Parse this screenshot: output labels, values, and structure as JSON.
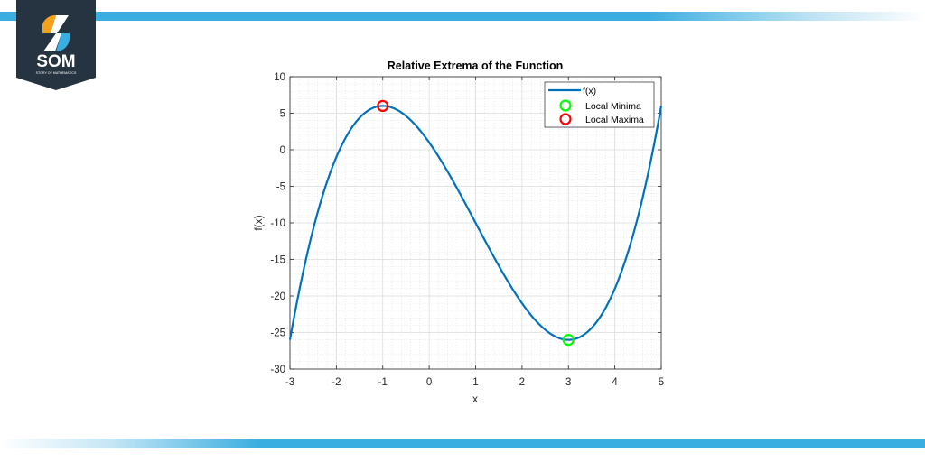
{
  "brand": {
    "logo_text": "SOM",
    "logo_subtext": "STORY OF MATHEMATICS",
    "colors": {
      "navy": "#263340",
      "orange": "#f7a11a",
      "blue": "#3aaee0",
      "white": "#ffffff"
    }
  },
  "decor": {
    "bar_color": "#3aaee0"
  },
  "chart_data": {
    "type": "line",
    "title": "Relative Extrema of the Function",
    "xlabel": "x",
    "ylabel": "f(x)",
    "xlim": [
      -3,
      5
    ],
    "ylim": [
      -30,
      10
    ],
    "xticks": [
      -3,
      -2,
      -1,
      0,
      1,
      2,
      3,
      4,
      5
    ],
    "yticks": [
      10,
      5,
      0,
      -5,
      -10,
      -15,
      -20,
      -25,
      -30
    ],
    "xtick_labels": [
      "-3",
      "-2",
      "-1",
      "0",
      "1",
      "2",
      "3",
      "4",
      "5"
    ],
    "ytick_labels": [
      "10",
      "5",
      "0",
      "-5",
      "-10",
      "-15",
      "-20",
      "-25",
      "-30"
    ],
    "grid": true,
    "minor_grid": true,
    "legend_position": "upper right",
    "series": [
      {
        "name": "f(x)",
        "type": "line",
        "color": "#0072bd",
        "function": "x^3 - 3x^2 - 9x + 1",
        "x": [
          -3,
          -2.5,
          -2,
          -1.5,
          -1,
          -0.5,
          0,
          0.5,
          1,
          1.5,
          2,
          2.5,
          3,
          3.5,
          4,
          4.5,
          5
        ],
        "y": [
          -26,
          -11.5,
          -1,
          4.5,
          6,
          4.125,
          1,
          -3.875,
          -10,
          -16.625,
          -21,
          -24.375,
          -26,
          -24.125,
          -19,
          -11.375,
          6
        ]
      },
      {
        "name": "Local Minima",
        "type": "scatter",
        "marker": "circle-open",
        "color": "#00ff00",
        "x": [
          3
        ],
        "y": [
          -26
        ]
      },
      {
        "name": "Local Maxima",
        "type": "scatter",
        "marker": "circle-open",
        "color": "#ff0000",
        "x": [
          -1
        ],
        "y": [
          6
        ]
      }
    ]
  }
}
